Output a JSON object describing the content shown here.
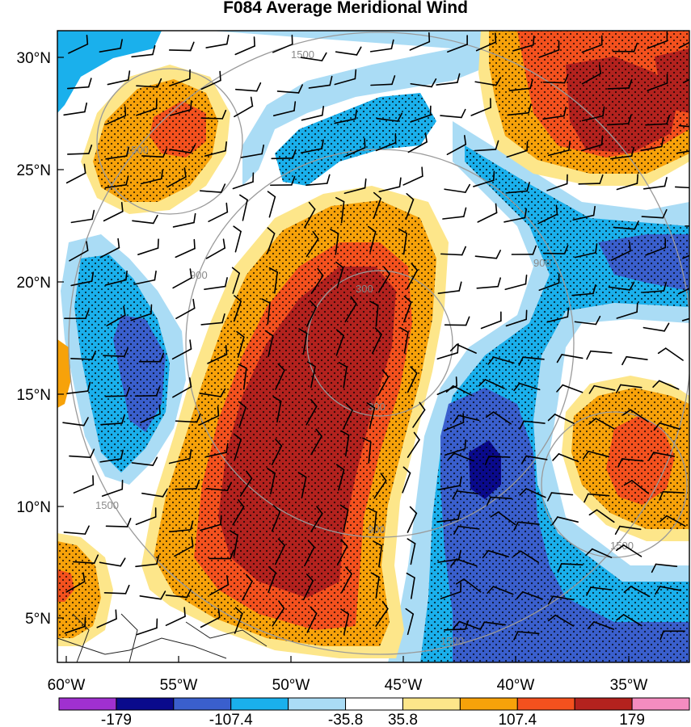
{
  "title": "F084 Average Meridional Wind",
  "axes": {
    "lat_ticks": [
      "5°N",
      "10°N",
      "15°N",
      "20°N",
      "25°N",
      "30°N"
    ],
    "lon_ticks": [
      "60°W",
      "55°W",
      "50°W",
      "45°W",
      "40°W",
      "35°W"
    ]
  },
  "range_rings": {
    "labels": [
      "300",
      "900",
      "1500"
    ]
  },
  "colorbar": {
    "colors": [
      "#a030d0",
      "#0a0a8c",
      "#3a5fcd",
      "#1ab0ec",
      "#aadcf5",
      "#ffffff",
      "#fde68a",
      "#f7a20a",
      "#f4511e",
      "#b3221e",
      "#f48cc0"
    ],
    "labels": [
      "-179",
      "-107.4",
      "-35.8",
      "35.8",
      "107.4",
      "179"
    ]
  },
  "shading_colors": {
    "strong_negative": "#3a5fcd",
    "extreme_negative": "#0a0a8c",
    "moderate_negative": "#1ab0ec",
    "weak_negative": "#aadcf5",
    "weak_positive": "#fde68a",
    "moderate_positive": "#f7a20a",
    "strong_positive": "#f4511e",
    "extreme_positive": "#b3221e"
  }
}
